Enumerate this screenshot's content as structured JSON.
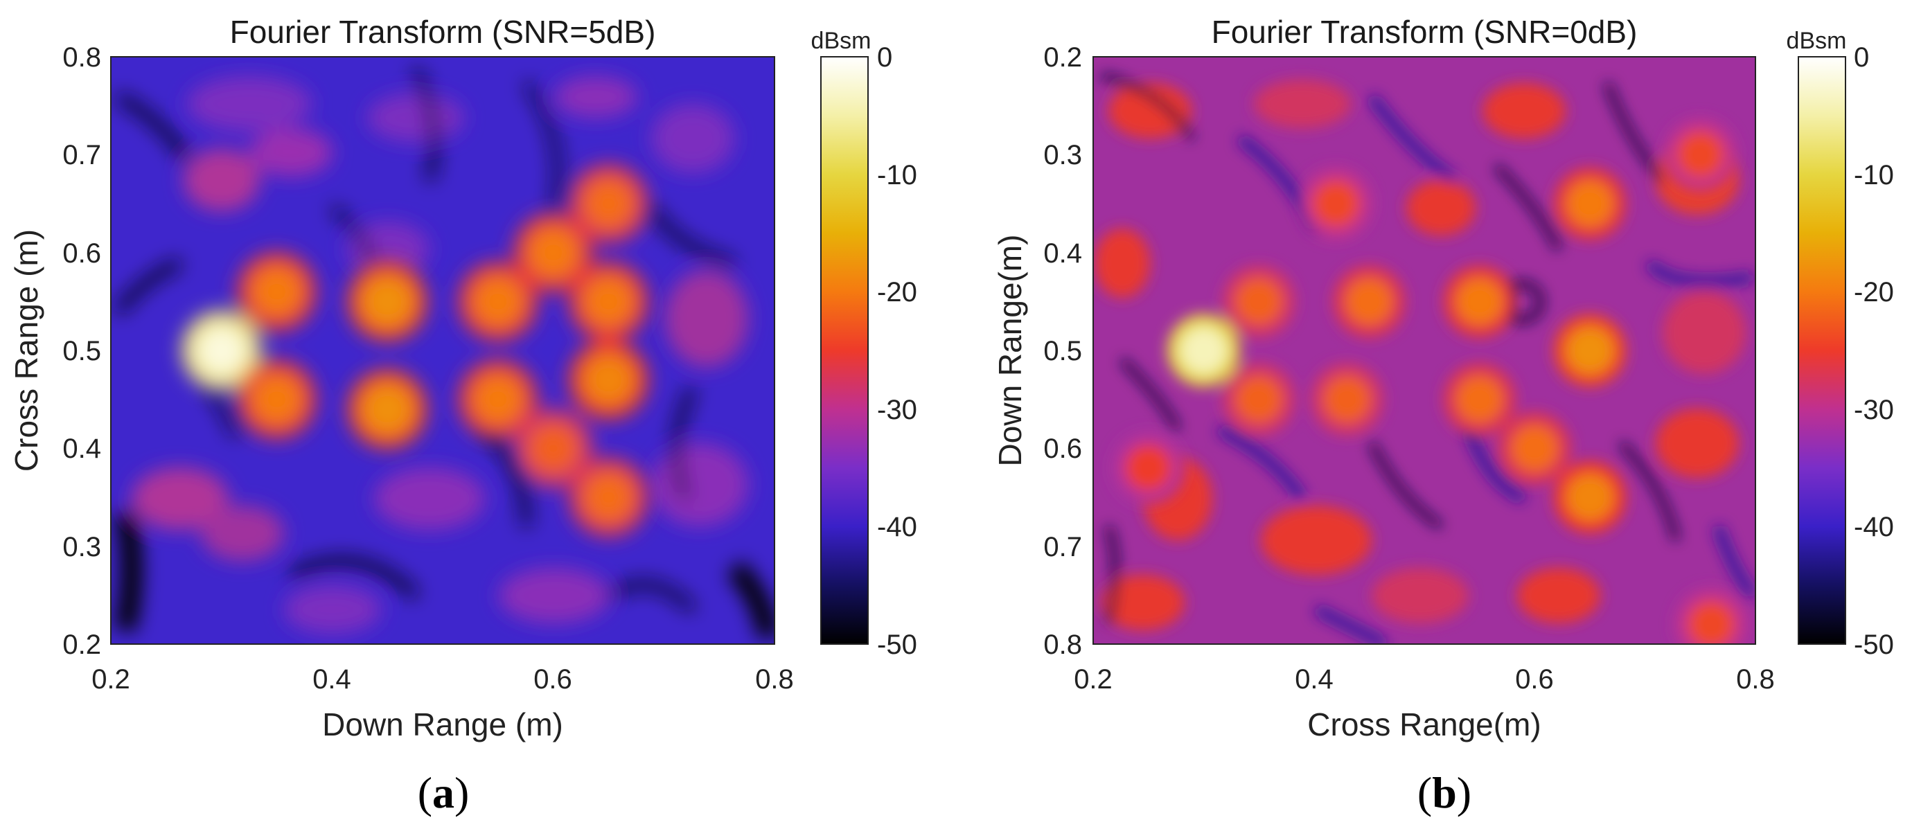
{
  "chart_data": [
    {
      "type": "heatmap",
      "title": "Fourier Transform (SNR=5dB)",
      "xlabel": "Down Range (m)",
      "ylabel": "Cross Range (m)",
      "xlim": [
        0.2,
        0.8
      ],
      "ylim": [
        0.2,
        0.8
      ],
      "x_ticks": [
        "0.2",
        "0.4",
        "0.6",
        "0.8"
      ],
      "y_ticks": [
        "0.2",
        "0.3",
        "0.4",
        "0.5",
        "0.6",
        "0.7",
        "0.8"
      ],
      "y_direction": "normal",
      "colorbar": {
        "label": "dBsm",
        "range": [
          -50,
          0
        ],
        "ticks": [
          "0",
          "-10",
          "-20",
          "-30",
          "-40",
          "-50"
        ],
        "colormap": "black-blue-purple-red-orange-yellow-white"
      },
      "background_level_dbsm": -36,
      "peaks": [
        {
          "x": 0.3,
          "y": 0.5,
          "value": -2
        },
        {
          "x": 0.35,
          "y": 0.56,
          "value": -20
        },
        {
          "x": 0.35,
          "y": 0.45,
          "value": -20
        },
        {
          "x": 0.45,
          "y": 0.55,
          "value": -18
        },
        {
          "x": 0.45,
          "y": 0.44,
          "value": -18
        },
        {
          "x": 0.55,
          "y": 0.55,
          "value": -20
        },
        {
          "x": 0.55,
          "y": 0.45,
          "value": -20
        },
        {
          "x": 0.6,
          "y": 0.6,
          "value": -20
        },
        {
          "x": 0.65,
          "y": 0.65,
          "value": -21
        },
        {
          "x": 0.65,
          "y": 0.55,
          "value": -20
        },
        {
          "x": 0.65,
          "y": 0.47,
          "value": -19
        },
        {
          "x": 0.6,
          "y": 0.4,
          "value": -22
        },
        {
          "x": 0.65,
          "y": 0.35,
          "value": -21
        }
      ]
    },
    {
      "type": "heatmap",
      "title": "Fourier Transform (SNR=0dB)",
      "xlabel": "Cross Range(m)",
      "ylabel": "Down Range(m)",
      "xlim": [
        0.2,
        0.8
      ],
      "ylim": [
        0.2,
        0.8
      ],
      "x_ticks": [
        "0.2",
        "0.4",
        "0.6",
        "0.8"
      ],
      "y_ticks": [
        "0.2",
        "0.3",
        "0.4",
        "0.5",
        "0.6",
        "0.7",
        "0.8"
      ],
      "y_direction": "reverse",
      "colorbar": {
        "label": "dBsm",
        "range": [
          -50,
          0
        ],
        "ticks": [
          "0",
          "-10",
          "-20",
          "-30",
          "-40",
          "-50"
        ],
        "colormap": "black-blue-purple-red-orange-yellow-white"
      },
      "background_level_dbsm": -30,
      "peaks": [
        {
          "x": 0.3,
          "y": 0.5,
          "value": -4
        },
        {
          "x": 0.35,
          "y": 0.45,
          "value": -22
        },
        {
          "x": 0.35,
          "y": 0.55,
          "value": -22
        },
        {
          "x": 0.42,
          "y": 0.35,
          "value": -24
        },
        {
          "x": 0.45,
          "y": 0.45,
          "value": -21
        },
        {
          "x": 0.43,
          "y": 0.55,
          "value": -22
        },
        {
          "x": 0.55,
          "y": 0.45,
          "value": -20
        },
        {
          "x": 0.55,
          "y": 0.55,
          "value": -21
        },
        {
          "x": 0.6,
          "y": 0.6,
          "value": -21
        },
        {
          "x": 0.65,
          "y": 0.35,
          "value": -20
        },
        {
          "x": 0.65,
          "y": 0.5,
          "value": -18
        },
        {
          "x": 0.65,
          "y": 0.65,
          "value": -19
        },
        {
          "x": 0.75,
          "y": 0.3,
          "value": -24
        },
        {
          "x": 0.25,
          "y": 0.62,
          "value": -25
        },
        {
          "x": 0.76,
          "y": 0.78,
          "value": -24
        }
      ]
    }
  ],
  "captions": [
    "a",
    "b"
  ]
}
